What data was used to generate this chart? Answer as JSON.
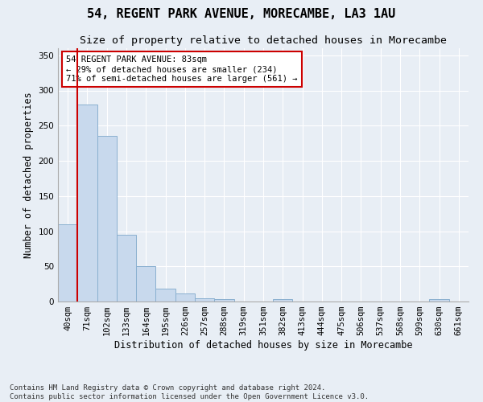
{
  "title": "54, REGENT PARK AVENUE, MORECAMBE, LA3 1AU",
  "subtitle": "Size of property relative to detached houses in Morecambe",
  "xlabel": "Distribution of detached houses by size in Morecambe",
  "ylabel": "Number of detached properties",
  "bar_labels": [
    "40sqm",
    "71sqm",
    "102sqm",
    "133sqm",
    "164sqm",
    "195sqm",
    "226sqm",
    "257sqm",
    "288sqm",
    "319sqm",
    "351sqm",
    "382sqm",
    "413sqm",
    "444sqm",
    "475sqm",
    "506sqm",
    "537sqm",
    "568sqm",
    "599sqm",
    "630sqm",
    "661sqm"
  ],
  "bar_values": [
    110,
    280,
    235,
    95,
    50,
    18,
    11,
    5,
    4,
    0,
    0,
    4,
    0,
    0,
    0,
    0,
    0,
    0,
    0,
    4,
    0
  ],
  "bar_color": "#c8d9ed",
  "bar_edge_color": "#8ab0d0",
  "vline_x": 0.5,
  "vline_color": "#cc0000",
  "ylim": [
    0,
    360
  ],
  "yticks": [
    0,
    50,
    100,
    150,
    200,
    250,
    300,
    350
  ],
  "annotation_text": "54 REGENT PARK AVENUE: 83sqm\n← 29% of detached houses are smaller (234)\n71% of semi-detached houses are larger (561) →",
  "annotation_box_color": "#ffffff",
  "annotation_box_edge": "#cc0000",
  "footer": "Contains HM Land Registry data © Crown copyright and database right 2024.\nContains public sector information licensed under the Open Government Licence v3.0.",
  "background_color": "#e8eef5",
  "grid_color": "#ffffff",
  "title_fontsize": 11,
  "subtitle_fontsize": 9.5,
  "axis_label_fontsize": 8.5,
  "tick_fontsize": 7.5,
  "footer_fontsize": 6.5
}
